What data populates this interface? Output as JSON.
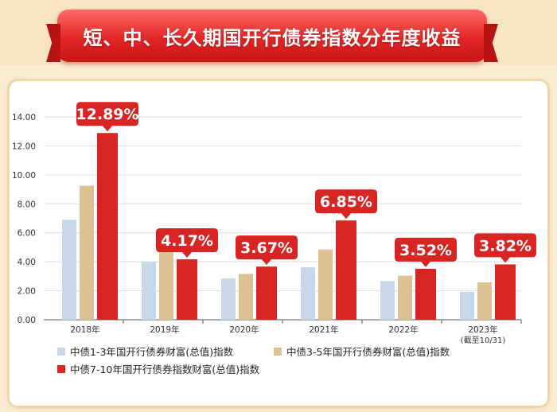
{
  "title": "短、中、长久期国开行债券指数分年度收益",
  "colors": {
    "short": "#c9d8e8",
    "mid": "#dcc192",
    "long": "#d92424",
    "callout": "#d92424",
    "grid": "#dddddd"
  },
  "chart_data": {
    "type": "bar",
    "categories": [
      "2018年",
      "2019年",
      "2020年",
      "2021年",
      "2022年",
      "2023年"
    ],
    "category_sublabels": [
      "",
      "",
      "",
      "",
      "",
      "(截至10/31)"
    ],
    "ylim": [
      0,
      14
    ],
    "yticks": [
      "0.00",
      "2.00",
      "4.00",
      "6.00",
      "8.00",
      "10.00",
      "12.00",
      "14.00"
    ],
    "grid": true,
    "legend_placement": "bottom",
    "series": [
      {
        "name": "中债1-3年国开行债券财富(总值)指数",
        "values": [
          6.9,
          4.0,
          2.85,
          3.62,
          2.67,
          1.92
        ]
      },
      {
        "name": "中债3-5年国开行债券财富(总值)指数",
        "values": [
          9.25,
          4.72,
          3.16,
          4.85,
          3.04,
          2.58
        ]
      },
      {
        "name": "中债7-10年国开行债券指数财富(总值)指数",
        "values": [
          12.89,
          4.17,
          3.67,
          6.85,
          3.52,
          3.82
        ]
      }
    ],
    "callouts": [
      "12.89%",
      "4.17%",
      "3.67%",
      "6.85%",
      "3.52%",
      "3.82%"
    ]
  }
}
